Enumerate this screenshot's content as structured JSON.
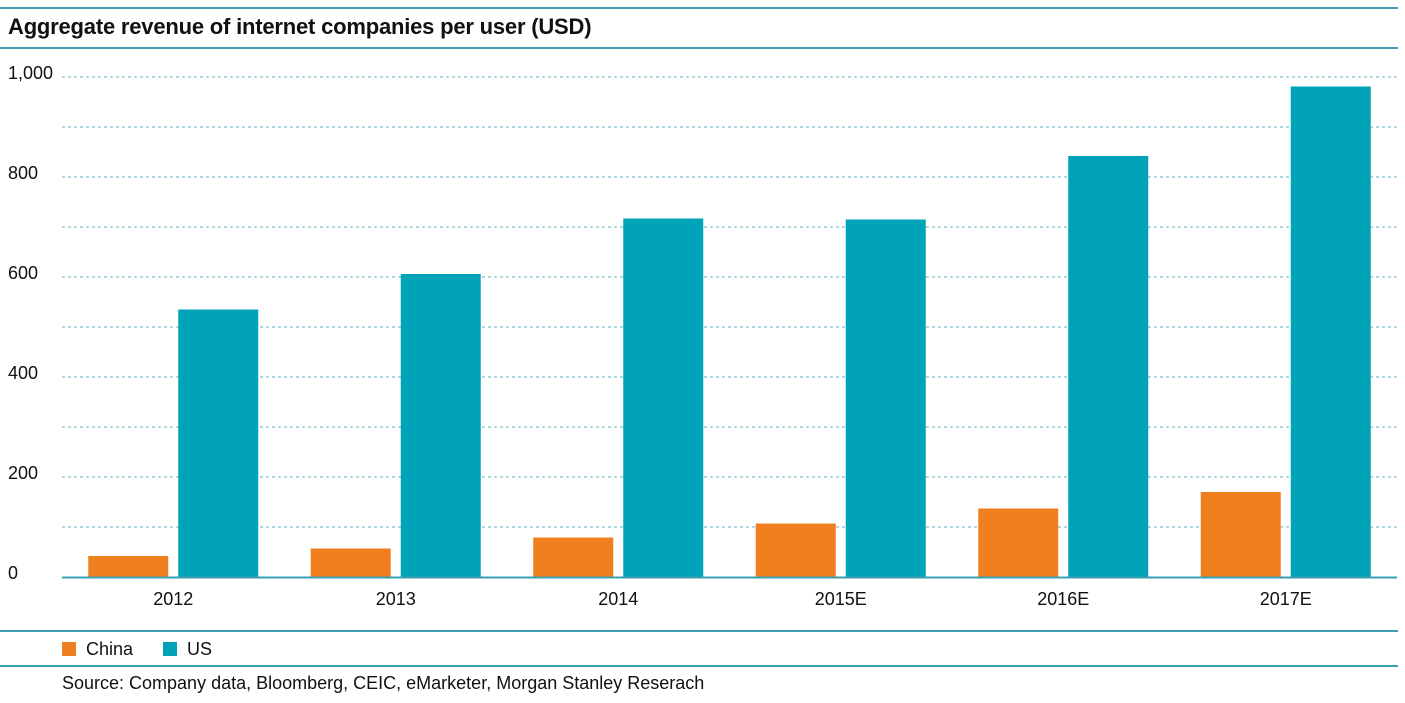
{
  "chart_data": {
    "type": "bar",
    "title": "Aggregate revenue of internet companies per user (USD)",
    "categories": [
      "2012",
      "2013",
      "2014",
      "2015E",
      "2016E",
      "2017E"
    ],
    "series": [
      {
        "name": "China",
        "values": [
          42,
          57,
          79,
          107,
          137,
          170
        ]
      },
      {
        "name": "US",
        "values": [
          535,
          606,
          717,
          715,
          842,
          981
        ]
      }
    ],
    "yticks": [
      "0",
      "200",
      "400",
      "600",
      "800",
      "1,000"
    ],
    "ylim": [
      0,
      1000
    ],
    "grid": true,
    "legend_position": "bottom-left",
    "colors": {
      "China": "#f07f1f",
      "US": "#00a3b8",
      "rule": "#3a9fb0",
      "grid": "#7fc4cf"
    }
  },
  "footer": {
    "source": "Source: Company data, Bloomberg, CEIC, eMarketer, Morgan Stanley Reserach"
  }
}
